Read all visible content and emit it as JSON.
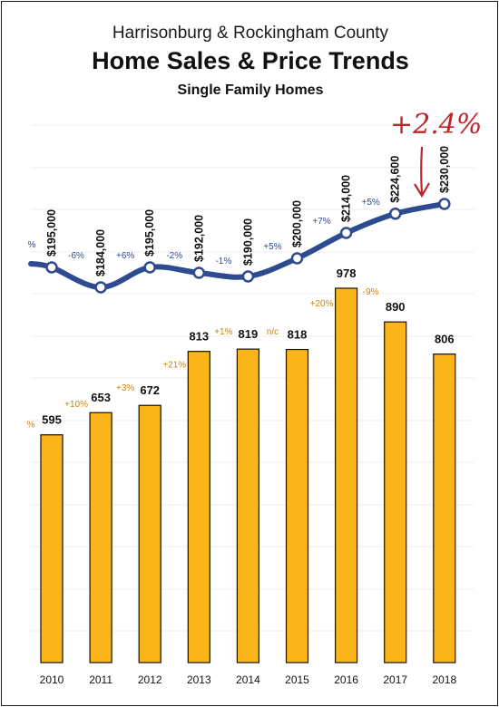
{
  "header": {
    "line1": "Harrisonburg & Rockingham County",
    "title": "Home Sales & Price Trends",
    "subtitle": "Single Family Homes"
  },
  "annotation": {
    "text": "+2.4%",
    "color": "#c0242b"
  },
  "colors": {
    "bar": "#fbb419",
    "line": "#2e4b8f",
    "bar_change": "#c8860a",
    "line_change": "#2e4b8f"
  },
  "chart_data": {
    "type": "bar+line",
    "title": "Home Sales & Price Trends",
    "categories": [
      "2010",
      "2011",
      "2012",
      "2013",
      "2014",
      "2015",
      "2016",
      "2017",
      "2018"
    ],
    "series": [
      {
        "type": "bar",
        "values": [
          595,
          653,
          672,
          813,
          819,
          818,
          978,
          890,
          806
        ],
        "labels": [
          "595",
          "653",
          "672",
          "813",
          "819",
          "818",
          "978",
          "890",
          "806"
        ],
        "changes": [
          "%",
          "+10%",
          "+3%",
          "+21%",
          "+1%",
          "n/c",
          "+20%",
          "-9%",
          ""
        ]
      },
      {
        "type": "line",
        "values": [
          195000,
          184000,
          195000,
          192000,
          190000,
          200000,
          214000,
          224600,
          230000
        ],
        "labels": [
          "$195,000",
          "$184,000",
          "$195,000",
          "$192,000",
          "$190,000",
          "$200,000",
          "$214,000",
          "$224,600",
          "$230,000"
        ],
        "changes": [
          "%",
          "-6%",
          "+6%",
          "-2%",
          "-1%",
          "+5%",
          "+7%",
          "+5%",
          ""
        ]
      }
    ],
    "grid": true,
    "legend": "none"
  }
}
